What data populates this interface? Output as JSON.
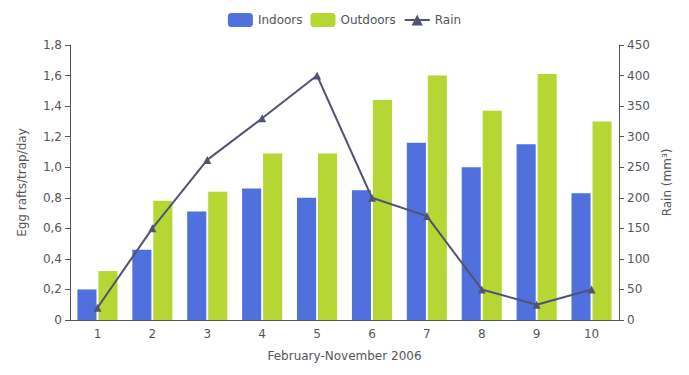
{
  "chart_data": {
    "type": "bar",
    "categories": [
      "1",
      "2",
      "3",
      "4",
      "5",
      "6",
      "7",
      "8",
      "9",
      "10"
    ],
    "series": [
      {
        "name": "Indoors",
        "type": "bar",
        "values": [
          0.2,
          0.46,
          0.71,
          0.86,
          0.8,
          0.85,
          1.16,
          1.0,
          1.15,
          0.83
        ]
      },
      {
        "name": "Outdoors",
        "type": "bar",
        "values": [
          0.32,
          0.78,
          0.84,
          1.09,
          1.09,
          1.44,
          1.6,
          1.37,
          1.61,
          1.3
        ]
      },
      {
        "name": "Rain",
        "type": "line",
        "marker": "triangle",
        "axis": "y2",
        "values": [
          20,
          150,
          262,
          330,
          400,
          200,
          170,
          50,
          25,
          50
        ]
      }
    ],
    "xlabel": "February-November 2006",
    "ylabel": "Egg rafts/trap/day",
    "y2label": "Rain (mm³)",
    "ylim": [
      0,
      1.8
    ],
    "yticks": [
      0,
      {
        "value": 0.2,
        "label": "0,2"
      },
      {
        "value": 0.4,
        "label": "0,4"
      },
      {
        "value": 0.6,
        "label": "0,6"
      },
      {
        "value": 0.8,
        "label": "0,8"
      },
      {
        "value": 1.0,
        "label": "1,0"
      },
      {
        "value": 1.2,
        "label": "1,2"
      },
      {
        "value": 1.4,
        "label": "1,4"
      },
      {
        "value": 1.6,
        "label": "1,6"
      },
      {
        "value": 1.8,
        "label": "1,8"
      }
    ],
    "y2lim": [
      0,
      450
    ],
    "y2ticks": [
      0,
      50,
      100,
      150,
      200,
      250,
      300,
      350,
      400,
      450
    ],
    "grid": false,
    "legend": "top"
  }
}
